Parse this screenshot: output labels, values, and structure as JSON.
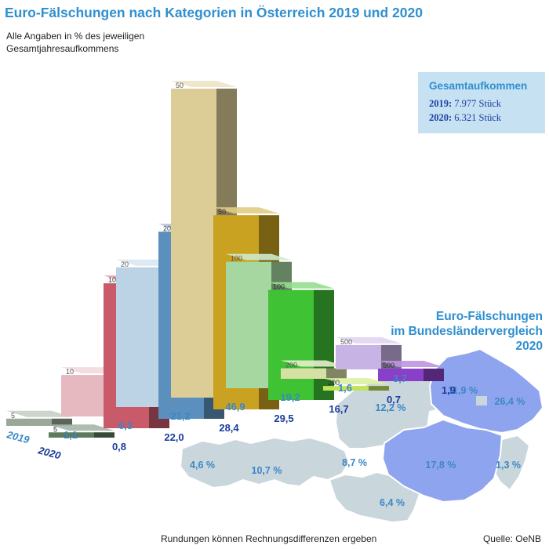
{
  "title": "Euro-Fälschungen nach Kategorien in Österreich 2019 und 2020",
  "subtitle": "Alle Angaben in % des jeweiligen Gesamtjahresaufkommens",
  "totals": {
    "heading": "Gesamtaufkommen",
    "rows": [
      {
        "year": "2019:",
        "value": "7.977 Stück"
      },
      {
        "year": "2020:",
        "value": "6.321 Stück"
      }
    ]
  },
  "footnote": "Rundungen können Rechnungsdifferenzen ergeben",
  "source": "Quelle: OeNB",
  "colors": {
    "label_2019": "#3b87c7",
    "label_2020": "#1a3c9c",
    "map_base": "#c9d6dc",
    "map_highlight": "#8fa4ee"
  },
  "chart_data": [
    {
      "type": "bar",
      "title": "Euro-Fälschungen nach Kategorien in Österreich 2019 und 2020",
      "unit": "%",
      "categories": [
        "5",
        "10",
        "20",
        "50",
        "100",
        "200",
        "500"
      ],
      "series": [
        {
          "name": "2019",
          "values": [
            1.1,
            6.3,
            21.2,
            46.9,
            19.2,
            1.6,
            3.7
          ],
          "labels": [
            "1,1",
            "6,3",
            "21,2",
            "46,9",
            "19,2",
            "1,6",
            "3,7"
          ]
        },
        {
          "name": "2020",
          "values": [
            0.8,
            22.0,
            28.4,
            29.5,
            16.7,
            0.7,
            1.9
          ],
          "labels": [
            "0,8",
            "22,0",
            "28,4",
            "29,5",
            "16,7",
            "0,7",
            "1,9"
          ]
        }
      ],
      "bar_colors_2019": [
        "#9aa898",
        "#e6b9c1",
        "#bcd3e6",
        "#dccd96",
        "#a6d7a0",
        "#d5e0a3",
        "#c7b3e4"
      ],
      "bar_colors_2020": [
        "#5b7a5e",
        "#c85a6a",
        "#5b8fbd",
        "#c9a222",
        "#3fc233",
        "#c2e25a",
        "#8a3fc8"
      ]
    },
    {
      "type": "map",
      "title": "Euro-Fälschungen im Bundesländervergleich 2020",
      "unit": "%",
      "regions": [
        {
          "value": "11,9 %",
          "highlight": true
        },
        {
          "value": "26,4 %",
          "highlight": true
        },
        {
          "value": "12,2 %",
          "highlight": false
        },
        {
          "value": "17,8 %",
          "highlight": true
        },
        {
          "value": "1,3 %",
          "highlight": false
        },
        {
          "value": "8,7 %",
          "highlight": false
        },
        {
          "value": "10,7 %",
          "highlight": false
        },
        {
          "value": "4,6 %",
          "highlight": false
        },
        {
          "value": "6,4 %",
          "highlight": false
        }
      ]
    }
  ],
  "map_title_lines": [
    "Euro-Fälschungen",
    "im Bundesländervergleich",
    "2020"
  ]
}
